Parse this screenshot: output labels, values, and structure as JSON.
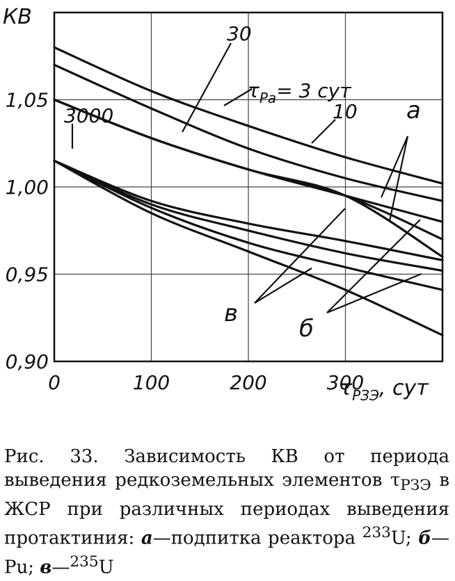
{
  "chart_data": {
    "type": "line",
    "ylabel": "КВ",
    "xlabel_tau": "τ",
    "xlabel_sub": "РЗЭ",
    "xlabel_unit": ", сут",
    "xlim": [
      0,
      400
    ],
    "ylim": [
      0.9,
      1.1
    ],
    "x_ticks": [
      0,
      100,
      200,
      300
    ],
    "x_tick_labels": [
      "0",
      "100",
      "200",
      "300"
    ],
    "y_ticks": [
      0.9,
      0.95,
      1.0,
      1.05
    ],
    "y_tick_labels": [
      "0,90",
      "0,95",
      "1,00",
      "1,05"
    ],
    "grid": true,
    "series": [
      {
        "x": [
          0,
          100,
          200,
          300,
          400
        ],
        "y": [
          1.08,
          1.055,
          1.035,
          1.017,
          1.002
        ]
      },
      {
        "x": [
          0,
          100,
          200,
          300,
          400
        ],
        "y": [
          1.07,
          1.045,
          1.022,
          1.005,
          0.992
        ]
      },
      {
        "x": [
          0,
          100,
          200,
          300,
          400
        ],
        "y": [
          1.05,
          1.028,
          1.01,
          0.995,
          0.98
        ]
      },
      {
        "x": [
          0,
          100,
          200,
          300,
          400
        ],
        "y": [
          1.05,
          1.028,
          1.01,
          0.995,
          0.97
        ]
      },
      {
        "x": [
          0,
          100,
          200,
          300,
          400
        ],
        "y": [
          1.05,
          1.028,
          1.01,
          0.995,
          0.96
        ]
      },
      {
        "x": [
          0,
          100,
          200,
          300,
          400
        ],
        "y": [
          1.015,
          0.992,
          0.979,
          0.969,
          0.958
        ]
      },
      {
        "x": [
          0,
          100,
          200,
          300,
          400
        ],
        "y": [
          1.015,
          0.99,
          0.975,
          0.962,
          0.952
        ]
      },
      {
        "x": [
          0,
          100,
          200,
          300,
          400
        ],
        "y": [
          1.015,
          0.988,
          0.968,
          0.954,
          0.941
        ]
      },
      {
        "x": [
          0,
          100,
          200,
          300,
          400
        ],
        "y": [
          1.015,
          0.985,
          0.963,
          0.941,
          0.915
        ]
      }
    ],
    "annotations": {
      "tau_pa_label": "τ",
      "tau_pa_sub": "Pa",
      "tau_pa_value": "= 3 сут",
      "label_30": "30",
      "label_10": "10",
      "label_3000": "3000",
      "label_a": "а",
      "label_b": "б",
      "label_v": "в"
    }
  },
  "caption": {
    "text1": "Рис. 33. Зависимость КВ от периода выведения редкоземельных элементов τ",
    "sub1": "РЗЭ",
    "text2": " в ЖСР при различных периодах выведения протактиния: ",
    "a": "а",
    "text3": "—подпитка реактора ",
    "sup1": "233",
    "text4": "U; ",
    "b": "б",
    "text5": "—Pu; ",
    "v": "в",
    "text6": "—",
    "sup2": "235",
    "text7": "U"
  }
}
